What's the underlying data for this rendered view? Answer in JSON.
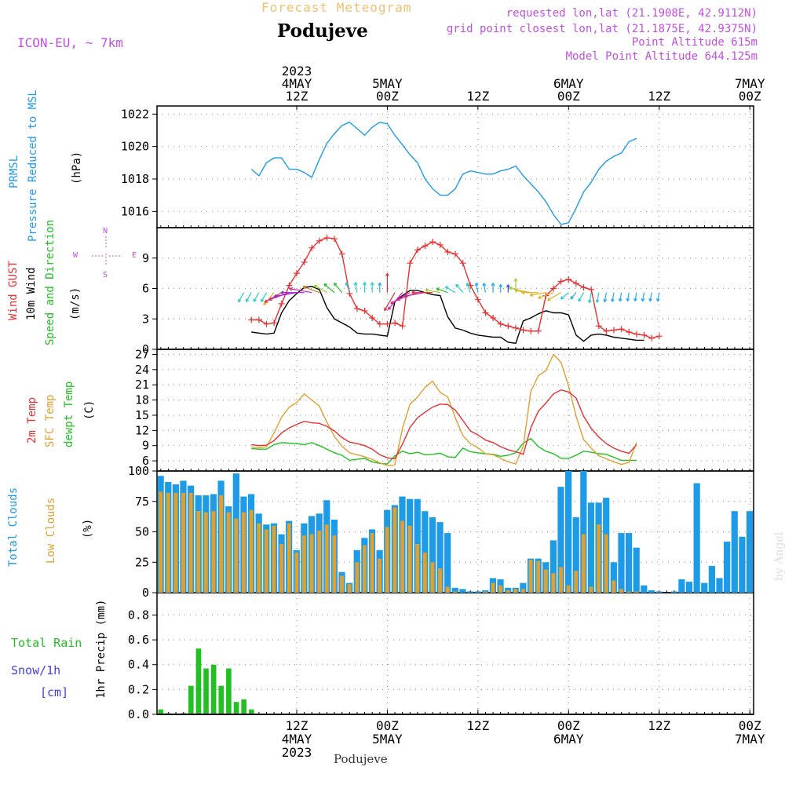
{
  "header": {
    "product": "Forecast Meteogram",
    "location": "Podujeve",
    "model": "ICON-EU, ~ 7km",
    "requested": "requested lon,lat (21.1908E, 42.9112N)",
    "grid": "grid point closest lon,lat (21.1875E, 42.9375N)",
    "point_alt": "Point Altitude 615m",
    "model_alt": "Model Point Altitude 644.125m",
    "credit": "by Angel",
    "footer_location": "Podujeve"
  },
  "time_axis": {
    "top": [
      {
        "i": 18,
        "lines": [
          "2023",
          "4MAY",
          "12Z"
        ]
      },
      {
        "i": 30,
        "lines": [
          "5MAY",
          "00Z"
        ]
      },
      {
        "i": 42,
        "lines": [
          "12Z"
        ]
      },
      {
        "i": 54,
        "lines": [
          "6MAY",
          "00Z"
        ]
      },
      {
        "i": 66,
        "lines": [
          "12Z"
        ]
      },
      {
        "i": 78,
        "lines": [
          "7MAY",
          "00Z"
        ]
      }
    ],
    "bottom": [
      {
        "i": 18,
        "lines": [
          "12Z",
          "4MAY",
          "2023"
        ]
      },
      {
        "i": 30,
        "lines": [
          "00Z",
          "5MAY"
        ]
      },
      {
        "i": 42,
        "lines": [
          "12Z"
        ]
      },
      {
        "i": 54,
        "lines": [
          "00Z",
          "6MAY"
        ]
      },
      {
        "i": 66,
        "lines": [
          "12Z"
        ]
      },
      {
        "i": 78,
        "lines": [
          "00Z",
          "7MAY"
        ]
      }
    ]
  },
  "panel_labels": {
    "pressure": [
      {
        "text": "PRMSL",
        "color": "#1e9be6"
      },
      {
        "text": "Pressure Reduced to MSL",
        "color": "#1e9be6"
      },
      {
        "text": "(hPa)",
        "color": "#000000"
      }
    ],
    "wind": [
      {
        "text": "Wind GUST",
        "color": "#e83030"
      },
      {
        "text": "10m Wind",
        "color": "#000000"
      },
      {
        "text": "Speed and Direction",
        "color": "#22c022"
      },
      {
        "text": "(m/s)",
        "color": "#000000"
      }
    ],
    "compass": {
      "n": "N",
      "s": "S",
      "w": "W",
      "e": "E"
    },
    "temp": [
      {
        "text": "2m Temp",
        "color": "#e83030"
      },
      {
        "text": "SFC Temp",
        "color": "#e0a030"
      },
      {
        "text": "dewpt Temp",
        "color": "#22c022"
      },
      {
        "text": "(C)",
        "color": "#000000"
      }
    ],
    "clouds": [
      {
        "text": "Total Clouds",
        "color": "#1e9be6"
      },
      {
        "text": "Low Clouds",
        "color": "#e0a030"
      },
      {
        "text": "(%)",
        "color": "#000000"
      }
    ],
    "precip_ylabel": "1hr Precip (mm)",
    "precip_legend": [
      {
        "text": "Total  Rain",
        "color": "#22c022"
      },
      {
        "text": "Snow/1h",
        "color": "#4040e0"
      },
      {
        "text": "[cm]",
        "color": "#4040e0"
      }
    ]
  },
  "colors": {
    "pressure": "#1e9be6",
    "gust": "#e83030",
    "wind": "#000000",
    "t2m": "#e83030",
    "tsfc": "#e0a030",
    "dewpt": "#22c022",
    "total_clouds": "#1e9be6",
    "low_clouds": "#e0a030",
    "rain": "#22c022"
  },
  "chart_data": [
    {
      "type": "line",
      "name": "pressure",
      "ylim": [
        1015,
        1022.5
      ],
      "yticks": [
        1016,
        1018,
        1020,
        1022
      ],
      "x_hours_from_4may_00z": "0..63",
      "series": [
        {
          "name": "PRMSL",
          "values": [
            1018.6,
            1018.2,
            1019.0,
            1019.3,
            1019.3,
            1018.6,
            1018.6,
            1018.4,
            1018.1,
            1019.2,
            1020.2,
            1020.8,
            1021.3,
            1021.5,
            1021.1,
            1020.7,
            1021.2,
            1021.5,
            1021.4,
            1020.7,
            1020.1,
            1019.5,
            1019.0,
            1018.0,
            1017.4,
            1017.0,
            1017.0,
            1017.4,
            1018.3,
            1018.5,
            1018.4,
            1018.3,
            1018.3,
            1018.5,
            1018.6,
            1018.8,
            1018.2,
            1017.7,
            1017.2,
            1016.6,
            1015.8,
            1015.2,
            1015.3,
            1016.2,
            1017.2,
            1017.8,
            1018.6,
            1019.1,
            1019.4,
            1019.6,
            1020.3,
            1020.5
          ]
        }
      ],
      "x_index_start": 12
    },
    {
      "type": "line",
      "name": "wind",
      "ylim": [
        0,
        12
      ],
      "yticks": [
        0,
        3,
        6,
        9
      ],
      "x_index_start": 12,
      "series": [
        {
          "name": "Wind GUST",
          "values": [
            2.9,
            2.9,
            2.5,
            2.6,
            4.5,
            6.3,
            7.5,
            8.6,
            10.0,
            10.7,
            11.0,
            10.9,
            9.4,
            5.5,
            4.0,
            3.8,
            3.1,
            2.5,
            2.5,
            2.6,
            2.3,
            8.5,
            9.8,
            10.2,
            10.6,
            10.3,
            9.6,
            9.4,
            8.5,
            6.3,
            4.9,
            3.6,
            3.1,
            2.5,
            2.3,
            2.1,
            1.9,
            1.8,
            1.8,
            5.3,
            6.0,
            6.7,
            6.9,
            6.5,
            6.1,
            5.9,
            2.3,
            1.8,
            1.9,
            2.0,
            1.7,
            1.5,
            1.4,
            1.1,
            1.3
          ]
        },
        {
          "name": "10m Wind",
          "values": [
            1.7,
            1.6,
            1.5,
            1.6,
            3.6,
            4.8,
            5.5,
            6.1,
            6.2,
            5.9,
            4.1,
            3.0,
            2.6,
            2.2,
            1.6,
            1.5,
            1.5,
            1.4,
            1.3,
            4.7,
            5.3,
            5.8,
            5.8,
            5.6,
            5.4,
            5.3,
            3.2,
            2.1,
            1.9,
            1.6,
            1.4,
            1.3,
            1.2,
            1.2,
            0.7,
            0.6,
            2.8,
            3.1,
            3.5,
            3.8,
            3.6,
            3.6,
            3.4,
            1.4,
            0.8,
            1.4,
            1.5,
            1.4,
            1.2,
            1.1,
            1.0,
            0.9,
            0.9
          ]
        }
      ],
      "wind_directions_deg": [
        330,
        330,
        330,
        330,
        320,
        300,
        290,
        280,
        270,
        260,
        250,
        240,
        230,
        220,
        200,
        190,
        180,
        180,
        180,
        180,
        330,
        320,
        300,
        290,
        280,
        270,
        260,
        250,
        240,
        220,
        200,
        190,
        190,
        180,
        180,
        180,
        180,
        250,
        260,
        270,
        280,
        290,
        300,
        310,
        320,
        330,
        350,
        350,
        350,
        350,
        350,
        350,
        350,
        350,
        350,
        350
      ]
    },
    {
      "type": "line",
      "name": "temperature",
      "ylim": [
        4,
        28
      ],
      "yticks": [
        6,
        9,
        12,
        15,
        18,
        21,
        24,
        27
      ],
      "x_index_start": 12,
      "series": [
        {
          "name": "2m Temp",
          "values": [
            9.2,
            9.0,
            9.1,
            10.0,
            11.5,
            12.5,
            13.2,
            13.8,
            13.5,
            13.4,
            12.8,
            11.9,
            10.6,
            9.7,
            9.4,
            9.0,
            8.3,
            7.2,
            6.6,
            6.4,
            9.3,
            12.6,
            14.5,
            15.6,
            16.6,
            17.2,
            17.1,
            16.0,
            14.0,
            11.9,
            11.1,
            10.1,
            9.6,
            8.8,
            8.2,
            7.8,
            7.3,
            12.5,
            15.8,
            17.4,
            19.2,
            20.0,
            19.6,
            18.4,
            14.8,
            12.4,
            10.7,
            9.4,
            8.5,
            7.9,
            7.5,
            9.2
          ]
        },
        {
          "name": "SFC Temp",
          "values": [
            8.7,
            8.6,
            8.8,
            11.5,
            14.6,
            16.6,
            17.5,
            19.2,
            18.0,
            16.8,
            13.6,
            10.8,
            8.9,
            7.6,
            7.2,
            6.8,
            6.3,
            5.6,
            5.1,
            5.2,
            12.4,
            17.2,
            18.6,
            20.5,
            21.7,
            19.5,
            18.6,
            14.5,
            11.0,
            9.4,
            8.6,
            7.4,
            7.2,
            6.5,
            5.8,
            5.4,
            8.9,
            19.7,
            22.8,
            23.8,
            27.0,
            25.4,
            20.8,
            14.8,
            10.2,
            8.5,
            7.0,
            6.4,
            5.8,
            5.3,
            5.7,
            9.6
          ]
        },
        {
          "name": "dewpt Temp",
          "values": [
            8.4,
            8.3,
            8.3,
            9.2,
            9.6,
            9.5,
            9.4,
            9.2,
            9.6,
            9.0,
            8.3,
            7.6,
            7.1,
            6.1,
            6.3,
            6.5,
            5.8,
            5.5,
            5.4,
            7.0,
            7.9,
            7.4,
            7.7,
            7.2,
            7.3,
            7.5,
            6.8,
            6.7,
            8.5,
            7.8,
            7.6,
            7.4,
            7.3,
            6.9,
            7.1,
            7.6,
            9.5,
            10.4,
            8.8,
            7.9,
            7.4,
            6.5,
            6.5,
            7.1,
            7.9,
            7.7,
            7.4,
            7.3,
            6.7,
            6.1,
            6.1,
            6.1
          ]
        }
      ]
    },
    {
      "type": "bar",
      "name": "clouds",
      "ylim": [
        0,
        100
      ],
      "yticks": [
        0,
        25,
        50,
        75,
        100
      ],
      "x_index_start": 0,
      "series": [
        {
          "name": "Total Clouds",
          "values": [
            96,
            91,
            89,
            92,
            88,
            80,
            80,
            81,
            92,
            71,
            98,
            79,
            81,
            65,
            56,
            57,
            48,
            59,
            35,
            57,
            63,
            65,
            76,
            60,
            17,
            8,
            35,
            45,
            52,
            35,
            68,
            72,
            79,
            77,
            77,
            67,
            62,
            58,
            49,
            4,
            3,
            1,
            1,
            2,
            12,
            11,
            4,
            4,
            8,
            28,
            28,
            25,
            43,
            87,
            100,
            62,
            100,
            74,
            74,
            78,
            25,
            49,
            49,
            37,
            6,
            2,
            1,
            0,
            1,
            11,
            9,
            90,
            8,
            22,
            12,
            42,
            67,
            46,
            67
          ]
        },
        {
          "name": "Low Clouds",
          "values": [
            83,
            82,
            82,
            82,
            82,
            67,
            66,
            67,
            80,
            66,
            61,
            66,
            68,
            57,
            52,
            55,
            40,
            57,
            33,
            47,
            48,
            51,
            56,
            47,
            14,
            7,
            25,
            39,
            49,
            28,
            54,
            70,
            59,
            55,
            40,
            33,
            25,
            20,
            5,
            1,
            0,
            0,
            0,
            1,
            8,
            6,
            2,
            3,
            3,
            27,
            26,
            19,
            16,
            21,
            6,
            18,
            48,
            5,
            56,
            48,
            10,
            3,
            1,
            1,
            0,
            0,
            0,
            0,
            0,
            0,
            0,
            0,
            0,
            0,
            0,
            0,
            0,
            0,
            0
          ]
        }
      ]
    },
    {
      "type": "bar",
      "name": "precipitation",
      "ylim": [
        0,
        0.98
      ],
      "yticks": [
        0,
        0.2,
        0.4,
        0.6,
        0.8
      ],
      "x_index_start": 0,
      "series": [
        {
          "name": "Total Rain",
          "values": [
            0.04,
            0.01,
            0,
            0.01,
            0.23,
            0.53,
            0.37,
            0.4,
            0.23,
            0.37,
            0.1,
            0.12,
            0.04
          ]
        }
      ]
    }
  ]
}
